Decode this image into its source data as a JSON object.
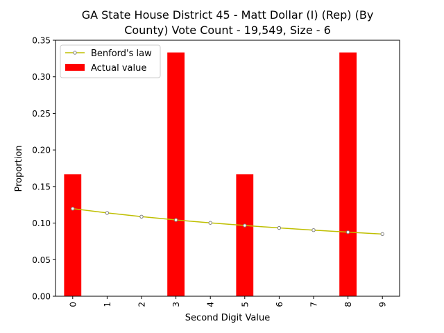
{
  "chart_data": {
    "type": "bar",
    "title_lines": [
      "GA State House District 45 - Matt Dollar (I) (Rep) (By",
      "County) Vote Count - 19,549, Size - 6"
    ],
    "xlabel": "Second Digit Value",
    "ylabel": "Proportion",
    "categories": [
      "0",
      "1",
      "2",
      "3",
      "4",
      "5",
      "6",
      "7",
      "8",
      "9"
    ],
    "ylim": [
      0,
      0.35
    ],
    "yticks": [
      "0.00",
      "0.05",
      "0.10",
      "0.15",
      "0.20",
      "0.25",
      "0.30",
      "0.35"
    ],
    "grid": false,
    "legend_position": "top-left",
    "series": [
      {
        "name": "Actual value",
        "kind": "bar",
        "color": "#ff0000",
        "values": [
          0.1667,
          0,
          0,
          0.3333,
          0,
          0.1667,
          0,
          0,
          0.3333,
          0
        ]
      },
      {
        "name": "Benford's law",
        "kind": "line",
        "color": "#bfbf00",
        "marker_color": "#808080",
        "values": [
          0.1197,
          0.1139,
          0.1088,
          0.1043,
          0.1003,
          0.0967,
          0.0934,
          0.0904,
          0.0876,
          0.085
        ]
      }
    ]
  }
}
